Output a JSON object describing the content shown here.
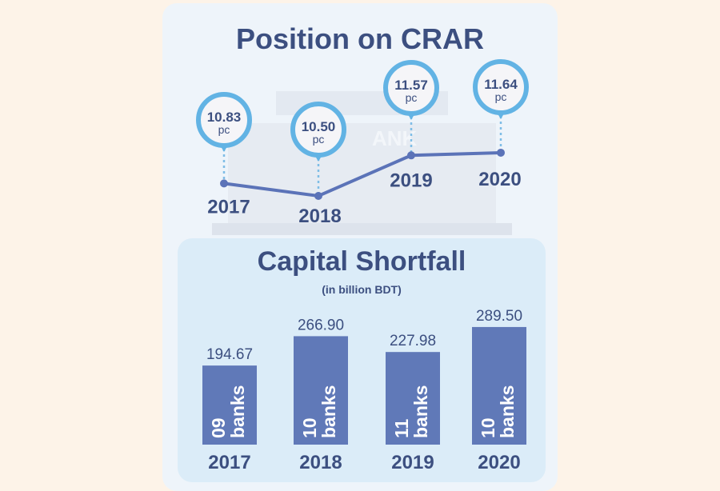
{
  "chart_data": [
    {
      "type": "line",
      "title": "Position on CRAR",
      "categories": [
        "2017",
        "2018",
        "2019",
        "2020"
      ],
      "values": [
        10.83,
        10.5,
        11.57,
        11.64
      ],
      "value_labels": [
        "10.83",
        "10.50",
        "11.57",
        "11.64"
      ],
      "unit_label": "pc",
      "colors": {
        "line": "#5b73b8",
        "bubble_ring": "#62b3e4",
        "text": "#3c4f80"
      }
    },
    {
      "type": "bar",
      "title": "Capital Shortfall",
      "subtitle": "(in billion BDT)",
      "categories": [
        "2017",
        "2018",
        "2019",
        "2020"
      ],
      "values": [
        194.67,
        266.9,
        227.98,
        289.5
      ],
      "value_labels": [
        "194.67",
        "266.90",
        "227.98",
        "289.50"
      ],
      "bar_labels": [
        [
          "09",
          "banks"
        ],
        [
          "10",
          "banks"
        ],
        [
          "11",
          "banks"
        ],
        [
          "10",
          "banks"
        ]
      ],
      "colors": {
        "bar": "#6079b8",
        "text": "#3c4f80"
      }
    }
  ],
  "background_text": "BANK"
}
